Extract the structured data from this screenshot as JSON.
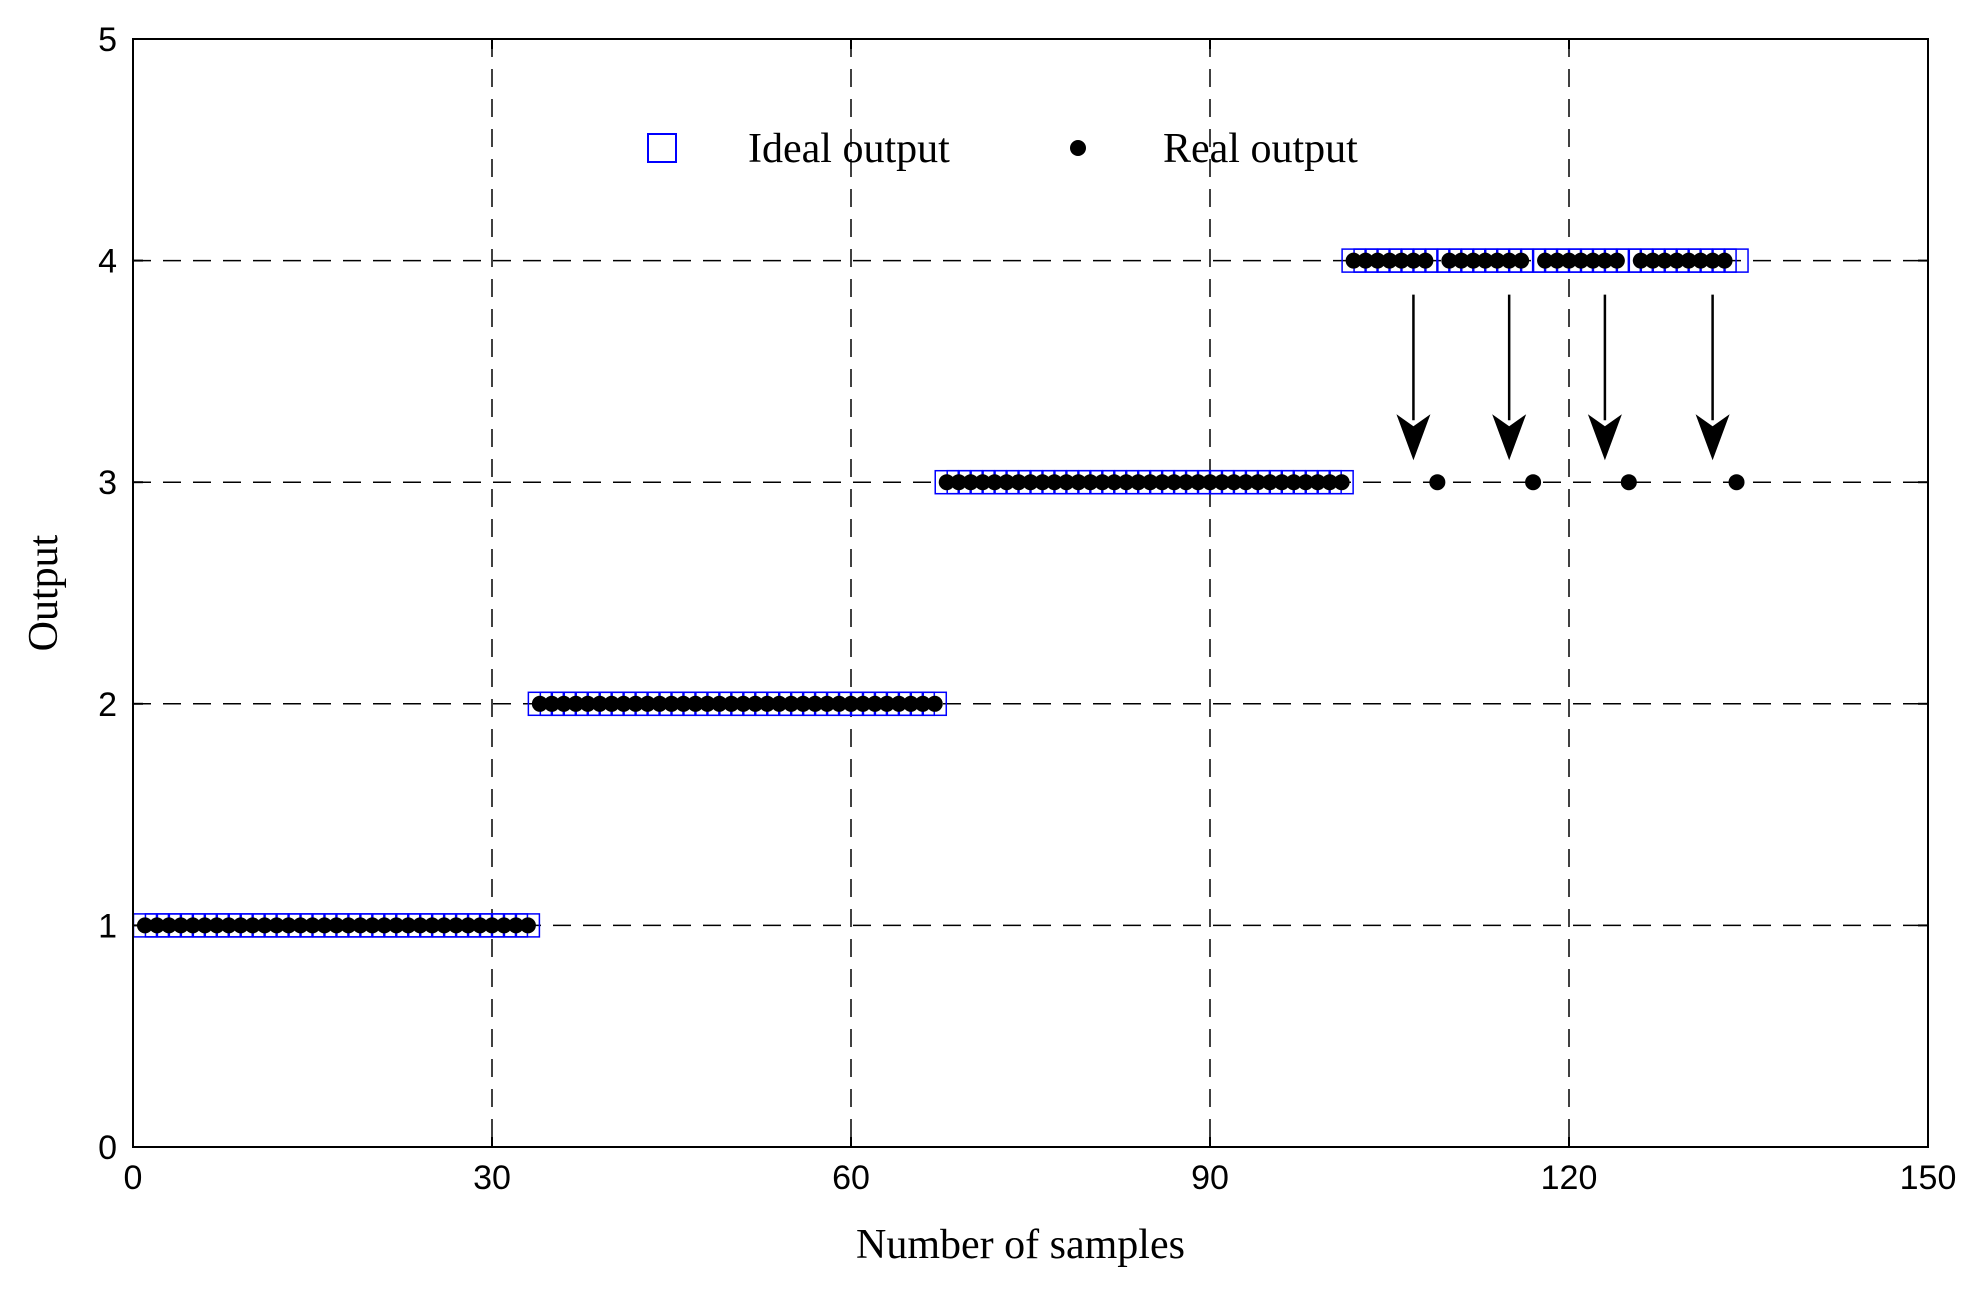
{
  "chart_data": {
    "type": "scatter",
    "xlabel": "Number of samples",
    "ylabel": "Output",
    "xlim": [
      0,
      150
    ],
    "ylim": [
      0,
      5
    ],
    "xticks": [
      0,
      30,
      60,
      90,
      120,
      150
    ],
    "yticks": [
      0,
      1,
      2,
      3,
      4,
      5
    ],
    "grid": true,
    "legend_position": "top-center",
    "series": [
      {
        "name": "Ideal output",
        "marker": "square",
        "color": "#0000ff",
        "values": [
          1,
          1,
          1,
          1,
          1,
          1,
          1,
          1,
          1,
          1,
          1,
          1,
          1,
          1,
          1,
          1,
          1,
          1,
          1,
          1,
          1,
          1,
          1,
          1,
          1,
          1,
          1,
          1,
          1,
          1,
          1,
          1,
          1,
          2,
          2,
          2,
          2,
          2,
          2,
          2,
          2,
          2,
          2,
          2,
          2,
          2,
          2,
          2,
          2,
          2,
          2,
          2,
          2,
          2,
          2,
          2,
          2,
          2,
          2,
          2,
          2,
          2,
          2,
          2,
          2,
          2,
          2,
          3,
          3,
          3,
          3,
          3,
          3,
          3,
          3,
          3,
          3,
          3,
          3,
          3,
          3,
          3,
          3,
          3,
          3,
          3,
          3,
          3,
          3,
          3,
          3,
          3,
          3,
          3,
          3,
          3,
          3,
          3,
          3,
          3,
          3,
          4,
          4,
          4,
          4,
          4,
          4,
          4,
          4,
          4,
          4,
          4,
          4,
          4,
          4,
          4,
          4,
          4,
          4,
          4,
          4,
          4,
          4,
          4,
          4,
          4,
          4,
          4,
          4,
          4,
          4,
          4,
          4,
          4
        ]
      },
      {
        "name": "Real output",
        "marker": "dot",
        "color": "#000000",
        "values": [
          1,
          1,
          1,
          1,
          1,
          1,
          1,
          1,
          1,
          1,
          1,
          1,
          1,
          1,
          1,
          1,
          1,
          1,
          1,
          1,
          1,
          1,
          1,
          1,
          1,
          1,
          1,
          1,
          1,
          1,
          1,
          1,
          1,
          2,
          2,
          2,
          2,
          2,
          2,
          2,
          2,
          2,
          2,
          2,
          2,
          2,
          2,
          2,
          2,
          2,
          2,
          2,
          2,
          2,
          2,
          2,
          2,
          2,
          2,
          2,
          2,
          2,
          2,
          2,
          2,
          2,
          2,
          3,
          3,
          3,
          3,
          3,
          3,
          3,
          3,
          3,
          3,
          3,
          3,
          3,
          3,
          3,
          3,
          3,
          3,
          3,
          3,
          3,
          3,
          3,
          3,
          3,
          3,
          3,
          3,
          3,
          3,
          3,
          3,
          3,
          3,
          4,
          4,
          4,
          4,
          4,
          4,
          4,
          3,
          4,
          4,
          4,
          4,
          4,
          4,
          4,
          3,
          4,
          4,
          4,
          4,
          4,
          4,
          4,
          3,
          4,
          4,
          4,
          4,
          4,
          4,
          4,
          4,
          3
        ]
      }
    ],
    "annotations": [
      {
        "type": "arrow",
        "x": 107,
        "from_y": 4,
        "to_y": 3
      },
      {
        "type": "arrow",
        "x": 115,
        "from_y": 4,
        "to_y": 3
      },
      {
        "type": "arrow",
        "x": 123,
        "from_y": 4,
        "to_y": 3
      },
      {
        "type": "arrow",
        "x": 132,
        "from_y": 4,
        "to_y": 3
      }
    ]
  }
}
